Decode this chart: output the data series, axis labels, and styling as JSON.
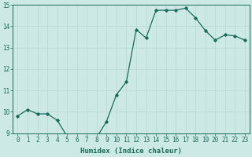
{
  "x": [
    0,
    1,
    2,
    3,
    4,
    5,
    6,
    7,
    8,
    9,
    10,
    11,
    12,
    13,
    14,
    15,
    16,
    17,
    18,
    19,
    20,
    21,
    22,
    23
  ],
  "y": [
    9.8,
    10.1,
    9.9,
    9.9,
    9.6,
    8.85,
    8.8,
    8.75,
    8.8,
    9.55,
    10.8,
    11.4,
    13.85,
    13.45,
    14.75,
    14.75,
    14.75,
    14.85,
    14.4,
    13.8,
    13.35,
    13.6,
    13.55,
    13.35
  ],
  "title": "",
  "xlabel": "Humidex (Indice chaleur)",
  "ylabel": "",
  "ylim": [
    9,
    15
  ],
  "xlim": [
    -0.5,
    23.5
  ],
  "yticks": [
    9,
    10,
    11,
    12,
    13,
    14,
    15
  ],
  "xticks": [
    0,
    1,
    2,
    3,
    4,
    5,
    6,
    7,
    8,
    9,
    10,
    11,
    12,
    13,
    14,
    15,
    16,
    17,
    18,
    19,
    20,
    21,
    22,
    23
  ],
  "line_color": "#1a6b5a",
  "marker": "D",
  "marker_size": 1.8,
  "line_width": 0.9,
  "bg_color": "#cce9e6",
  "grid_color": "#b8d8d4",
  "axis_fontsize": 6,
  "tick_fontsize": 5.5,
  "xlabel_fontsize": 6.5
}
